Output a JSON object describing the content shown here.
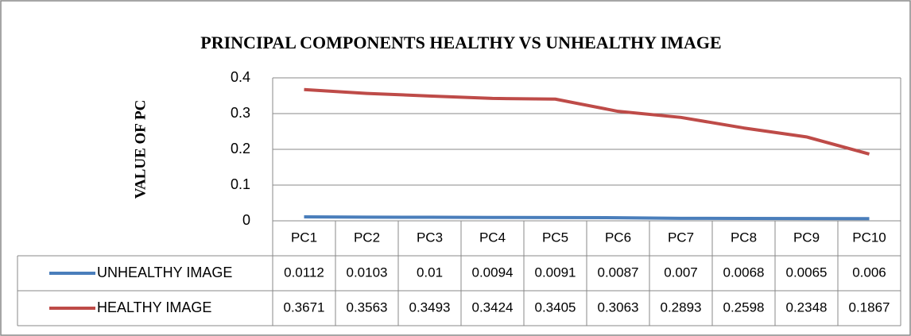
{
  "chart_data": {
    "type": "line",
    "title": "PRINCIPAL COMPONENTS HEALTHY VS UNHEALTHY IMAGE",
    "y_label": "VALUE OF PC",
    "categories": [
      "PC1",
      "PC2",
      "PC3",
      "PC4",
      "PC5",
      "PC6",
      "PC7",
      "PC8",
      "PC9",
      "PC10"
    ],
    "series": [
      {
        "name": "UNHEALTHY IMAGE",
        "color": "#4a7ebb",
        "values": [
          0.0112,
          0.0103,
          0.01,
          0.0094,
          0.0091,
          0.0087,
          0.007,
          0.0068,
          0.0065,
          0.006
        ]
      },
      {
        "name": "HEALTHY IMAGE",
        "color": "#be4b48",
        "values": [
          0.3671,
          0.3563,
          0.3493,
          0.3424,
          0.3405,
          0.3063,
          0.2893,
          0.2598,
          0.2348,
          0.1867
        ]
      }
    ],
    "ylim": [
      0,
      0.4
    ],
    "yticks": [
      0,
      0.1,
      0.2,
      0.3,
      0.4
    ],
    "grid": true,
    "data_table": true
  }
}
